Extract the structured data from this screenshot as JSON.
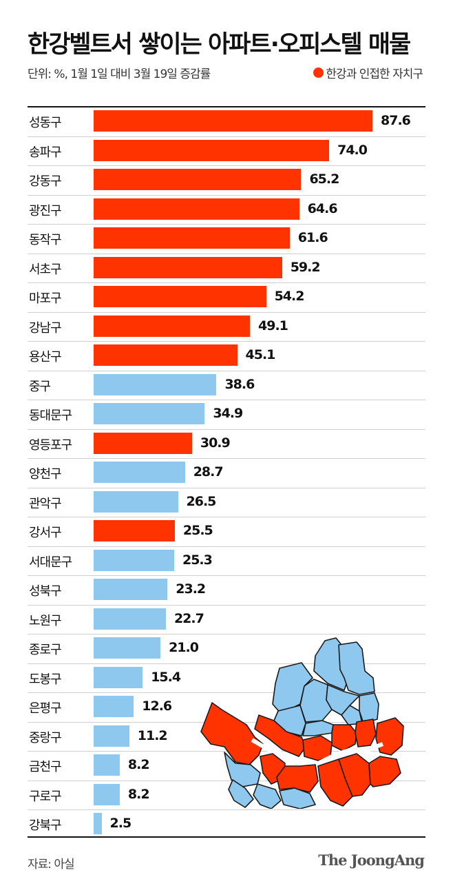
{
  "header": {
    "title": "한강벨트서 쌓이는 아파트·오피스텔 매물",
    "subtitle": "단위: %, 1월 1일 대비 3월 19일 증감률",
    "legend_label": "한강과 인접한 자치구"
  },
  "colors": {
    "adjacent": "#ff3300",
    "other": "#8ec8ef",
    "rule": "#111111",
    "gridline": "#cfcfcf"
  },
  "footer": {
    "source": "자료: 아실",
    "brand": "The JoongAng"
  },
  "map": {
    "icon": "seoul-district-map",
    "description": "서울 자치구 지도 — 한강 인접 자치구 빨간색 강조"
  },
  "chart_data": {
    "type": "bar",
    "orientation": "horizontal",
    "title": "한강벨트서 쌓이는 아파트·오피스텔 매물",
    "subtitle": "단위: %, 1월 1일 대비 3월 19일 증감률",
    "xlabel": "",
    "ylabel": "",
    "xlim": [
      0,
      90
    ],
    "grid": false,
    "legend": {
      "position": "top-right",
      "entries": [
        "한강과 인접한 자치구"
      ]
    },
    "categories": [
      "성동구",
      "송파구",
      "강동구",
      "광진구",
      "동작구",
      "서초구",
      "마포구",
      "강남구",
      "용산구",
      "중구",
      "동대문구",
      "영등포구",
      "양천구",
      "관악구",
      "강서구",
      "서대문구",
      "성북구",
      "노원구",
      "종로구",
      "도봉구",
      "은평구",
      "중랑구",
      "금천구",
      "구로구",
      "강북구"
    ],
    "values": [
      87.6,
      74.0,
      65.2,
      64.6,
      61.6,
      59.2,
      54.2,
      49.1,
      45.1,
      38.6,
      34.9,
      30.9,
      28.7,
      26.5,
      25.5,
      25.3,
      23.2,
      22.7,
      21.0,
      15.4,
      12.6,
      11.2,
      8.2,
      8.2,
      2.5
    ],
    "labels": [
      "87.6",
      "74.0",
      "65.2",
      "64.6",
      "61.6",
      "59.2",
      "54.2",
      "49.1",
      "45.1",
      "38.6",
      "34.9",
      "30.9",
      "28.7",
      "26.5",
      "25.5",
      "25.3",
      "23.2",
      "22.7",
      "21.0",
      "15.4",
      "12.6",
      "11.2",
      "8.2",
      "8.2",
      "2.5"
    ],
    "han_river_adjacent": [
      true,
      true,
      true,
      true,
      true,
      true,
      true,
      true,
      true,
      false,
      false,
      true,
      false,
      false,
      true,
      false,
      false,
      false,
      false,
      false,
      false,
      false,
      false,
      false,
      false
    ],
    "source": "자료: 아실"
  }
}
